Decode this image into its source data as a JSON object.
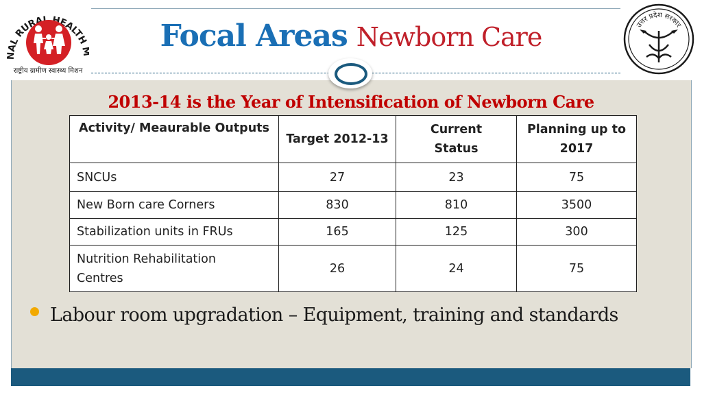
{
  "title": {
    "focal": "Focal Areas",
    "topic": "Newborn Care"
  },
  "subtitle": "2013-14 is the Year of Intensification of Newborn Care",
  "logos": {
    "left": {
      "text": "NATIONAL RURAL HEALTH MISSION",
      "hindi": "राष्ट्रीय ग्रामीण स्वास्थ्य मिशन",
      "icon": "family-icon"
    },
    "right": {
      "text": "उत्तर प्रदेश सरकार",
      "icon": "up-govt-emblem-icon"
    }
  },
  "table": {
    "headers": [
      "Activity/ Meaurable Outputs",
      "Target 2012-13",
      "Current Status",
      "Planning up to 2017"
    ],
    "rows": [
      [
        "SNCUs",
        "27",
        "23",
        "75"
      ],
      [
        "New Born care Corners",
        "830",
        "810",
        "3500"
      ],
      [
        "Stabilization units in FRUs",
        "165",
        "125",
        "300"
      ],
      [
        "Nutrition Rehabilitation Centres",
        "26",
        "24",
        "75"
      ]
    ]
  },
  "bullet": "Labour room upgradation – Equipment, training and standards",
  "colors": {
    "title_blue": "#1a6fb5",
    "title_red": "#c0202a",
    "subtitle_red": "#c00000",
    "footer_bar": "#1b5a7e",
    "bullet": "#f2a900",
    "panel": "#e3e0d6"
  }
}
